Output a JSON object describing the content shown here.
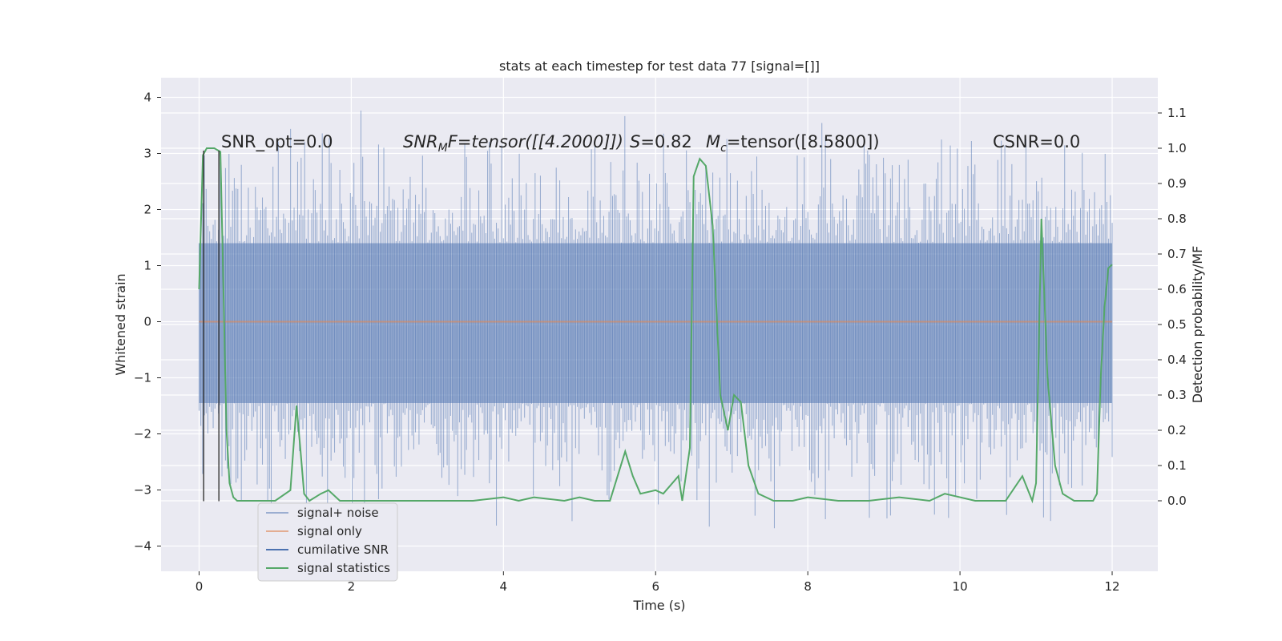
{
  "chart_data": {
    "type": "line",
    "title": "stats at each timestep for test data 77 [signal=[]]",
    "xlabel": "Time (s)",
    "ylabel_left": "Whitened strain",
    "ylabel_right": "Detection probability/MF",
    "xlim": [
      -0.5,
      12.6
    ],
    "ylim_left": [
      -4.45,
      4.35
    ],
    "ylim_right": [
      -0.2,
      1.2
    ],
    "x_ticks": [
      0,
      2,
      4,
      6,
      8,
      10,
      12
    ],
    "y_ticks_left": [
      -4,
      -3,
      -2,
      -1,
      0,
      1,
      2,
      3,
      4
    ],
    "y_ticks_right": [
      0.0,
      0.1,
      0.2,
      0.3,
      0.4,
      0.5,
      0.6,
      0.7,
      0.8,
      0.9,
      1.0,
      1.1
    ],
    "grid": true,
    "legend_placement": "lower-left",
    "annotations": {
      "snr_opt": "SNR_opt=0.0",
      "snr_mf_prefix": "SNR",
      "snr_mf_sub": "M",
      "snr_mf_rest": "F=tensor([[4.2000]])",
      "s_value_symbol": "S",
      "s_value_rest": "=0.82",
      "mc_symbol": "M",
      "mc_sub": "c",
      "mc_rest": "=tensor([8.5800])",
      "csnr": "CSNR=0.0"
    },
    "vertical_markers_x": [
      0.06,
      0.26
    ],
    "vertical_markers_y": [
      -3.2,
      3.05
    ],
    "noise_band": {
      "x_start": 0.0,
      "x_end": 12.0,
      "low": -1.45,
      "high": 1.4
    },
    "series": [
      {
        "name": "signal+ noise",
        "color": "#4c72b0",
        "note_values_approx": "dense noise between about -4.1 and 4.0"
      },
      {
        "name": "signal only",
        "color": "#dd8452",
        "x": [
          0,
          12
        ],
        "y": [
          0,
          0
        ]
      },
      {
        "name": "cumilative SNR",
        "color": "#4c72b0"
      },
      {
        "name": "signal statistics",
        "color": "#55a868",
        "axis": "right",
        "x": [
          0.0,
          0.05,
          0.1,
          0.2,
          0.28,
          0.32,
          0.36,
          0.4,
          0.45,
          0.5,
          0.6,
          0.8,
          1.0,
          1.2,
          1.28,
          1.33,
          1.38,
          1.45,
          1.6,
          1.7,
          1.85,
          2.0,
          2.4,
          2.8,
          3.2,
          3.6,
          4.0,
          4.2,
          4.4,
          4.8,
          5.0,
          5.2,
          5.4,
          5.5,
          5.6,
          5.7,
          5.8,
          6.0,
          6.1,
          6.3,
          6.35,
          6.45,
          6.5,
          6.58,
          6.66,
          6.75,
          6.85,
          6.95,
          7.03,
          7.12,
          7.22,
          7.35,
          7.55,
          7.8,
          8.0,
          8.4,
          8.8,
          9.2,
          9.6,
          9.8,
          10.2,
          10.6,
          10.82,
          10.95,
          11.0,
          11.07,
          11.15,
          11.25,
          11.35,
          11.5,
          11.75,
          11.8,
          11.85,
          11.9,
          11.95,
          12.0
        ],
        "y": [
          0.6,
          0.98,
          1.0,
          1.0,
          0.99,
          0.6,
          0.2,
          0.05,
          0.01,
          0.0,
          0.0,
          0.0,
          0.0,
          0.03,
          0.27,
          0.15,
          0.02,
          0.0,
          0.02,
          0.03,
          0.0,
          0.0,
          0.0,
          0.0,
          0.0,
          0.0,
          0.01,
          0.0,
          0.01,
          0.0,
          0.01,
          0.0,
          0.0,
          0.07,
          0.14,
          0.07,
          0.02,
          0.03,
          0.02,
          0.07,
          0.0,
          0.15,
          0.92,
          0.97,
          0.95,
          0.78,
          0.3,
          0.2,
          0.3,
          0.28,
          0.1,
          0.02,
          0.0,
          0.0,
          0.01,
          0.0,
          0.0,
          0.01,
          0.0,
          0.02,
          0.0,
          0.0,
          0.07,
          0.0,
          0.05,
          0.8,
          0.35,
          0.1,
          0.02,
          0.0,
          0.0,
          0.02,
          0.35,
          0.55,
          0.66,
          0.67
        ]
      }
    ]
  }
}
